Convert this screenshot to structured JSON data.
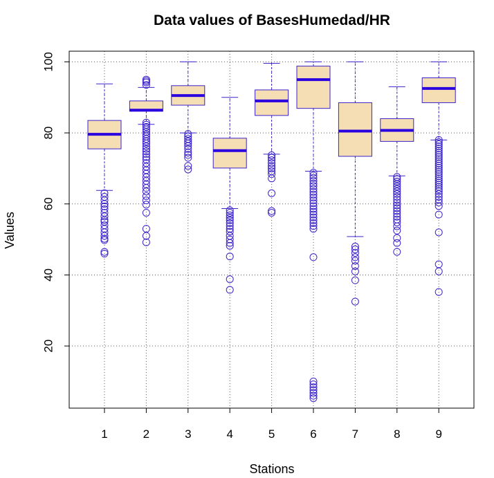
{
  "chart_data": {
    "type": "boxplot",
    "title": "Data values of BasesHumedad/HR",
    "xlabel": "Stations",
    "ylabel": "Values",
    "ylim": [
      2.5,
      103
    ],
    "yticks": [
      20,
      40,
      60,
      80,
      100
    ],
    "grid": true,
    "grid_style": "dotted",
    "colors": {
      "box_fill": "#f5deb3",
      "box_border": "#3a22cc",
      "median": "#2b00e0",
      "outlier": "#3a22cc",
      "grid": "#555555"
    },
    "categories": [
      "1",
      "2",
      "3",
      "4",
      "5",
      "6",
      "7",
      "8",
      "9"
    ],
    "boxes": [
      {
        "station": "1",
        "whisker_low": 63.8,
        "q1": 75.5,
        "median": 79.6,
        "q3": 83.5,
        "whisker_high": 93.8,
        "outliers": [
          63.0,
          62.0,
          61.0,
          60.0,
          59.3,
          58.5,
          57.5,
          56.5,
          55.5,
          55.0,
          54.0,
          53.0,
          52.0,
          51.0,
          50.2,
          49.8,
          46.5,
          46.0
        ]
      },
      {
        "station": "2",
        "whisker_low": 82.4,
        "q1": 86.1,
        "median": 86.4,
        "q3": 89.0,
        "whisker_high": 92.8,
        "outliers": [
          93.5,
          94.2,
          94.6,
          95.0,
          82.9,
          82.3,
          81.7,
          81.0,
          80.3,
          79.6,
          79.0,
          78.3,
          77.6,
          77.0,
          76.2,
          75.5,
          74.8,
          74.0,
          73.2,
          72.5,
          71.5,
          70.5,
          69.5,
          68.5,
          67.5,
          66.5,
          65.5,
          64.5,
          63.5,
          62.2,
          61.0,
          59.8,
          57.5,
          53.0,
          51.0,
          49.2
        ]
      },
      {
        "station": "3",
        "whisker_low": 80.0,
        "q1": 87.8,
        "median": 90.5,
        "q3": 93.3,
        "whisker_high": 100.0,
        "outliers": [
          79.7,
          79.0,
          78.3,
          77.6,
          77.0,
          76.3,
          75.5,
          74.5,
          73.8,
          73.0,
          70.7,
          69.7
        ]
      },
      {
        "station": "4",
        "whisker_low": 58.7,
        "q1": 70.1,
        "median": 75.0,
        "q3": 78.5,
        "whisker_high": 90.0,
        "outliers": [
          58.2,
          57.5,
          56.8,
          56.1,
          55.4,
          54.6,
          53.8,
          53.0,
          52.2,
          51.0,
          50.0,
          49.0,
          48.2,
          45.2,
          38.8,
          35.8
        ]
      },
      {
        "station": "5",
        "whisker_low": 74.0,
        "q1": 84.9,
        "median": 89.0,
        "q3": 92.1,
        "whisker_high": 99.6,
        "outliers": [
          73.7,
          73.0,
          72.3,
          71.5,
          70.7,
          70.0,
          69.2,
          68.4,
          67.2,
          63.0,
          58.0,
          57.5
        ]
      },
      {
        "station": "6",
        "whisker_low": 69.2,
        "q1": 86.9,
        "median": 95.0,
        "q3": 98.8,
        "whisker_high": 100.0,
        "outliers": [
          68.8,
          68.0,
          67.3,
          66.5,
          65.7,
          65.0,
          64.2,
          63.4,
          62.6,
          61.8,
          61.0,
          60.2,
          59.4,
          58.6,
          57.8,
          57.0,
          56.2,
          55.4,
          54.6,
          53.8,
          53.0,
          45.0,
          10.0,
          9.2,
          8.4,
          7.6,
          6.8,
          6.0,
          5.3
        ]
      },
      {
        "station": "7",
        "whisker_low": 50.8,
        "q1": 73.4,
        "median": 80.5,
        "q3": 88.5,
        "whisker_high": 100.0,
        "outliers": [
          48.0,
          47.2,
          46.2,
          45.0,
          44.0,
          42.5,
          41.0,
          38.5,
          32.5
        ]
      },
      {
        "station": "8",
        "whisker_low": 67.9,
        "q1": 77.6,
        "median": 80.7,
        "q3": 84.0,
        "whisker_high": 93.0,
        "outliers": [
          67.6,
          67.0,
          66.3,
          65.6,
          64.9,
          64.2,
          63.5,
          62.8,
          62.0,
          61.2,
          60.4,
          59.6,
          58.8,
          58.0,
          57.2,
          56.4,
          55.6,
          54.8,
          53.7,
          52.5,
          50.4,
          49.0,
          46.5
        ]
      },
      {
        "station": "9",
        "whisker_low": 78.0,
        "q1": 88.5,
        "median": 92.5,
        "q3": 95.5,
        "whisker_high": 100.0,
        "outliers": [
          78.0,
          77.4,
          76.8,
          76.2,
          75.6,
          75.0,
          74.4,
          73.8,
          73.2,
          72.6,
          72.0,
          71.4,
          70.8,
          70.2,
          69.6,
          69.0,
          68.4,
          67.8,
          67.2,
          66.6,
          66.0,
          65.4,
          64.8,
          64.2,
          63.6,
          62.8,
          62.0,
          61.2,
          60.4,
          59.4,
          57.0,
          52.0,
          43.0,
          41.0,
          35.2
        ]
      }
    ]
  }
}
